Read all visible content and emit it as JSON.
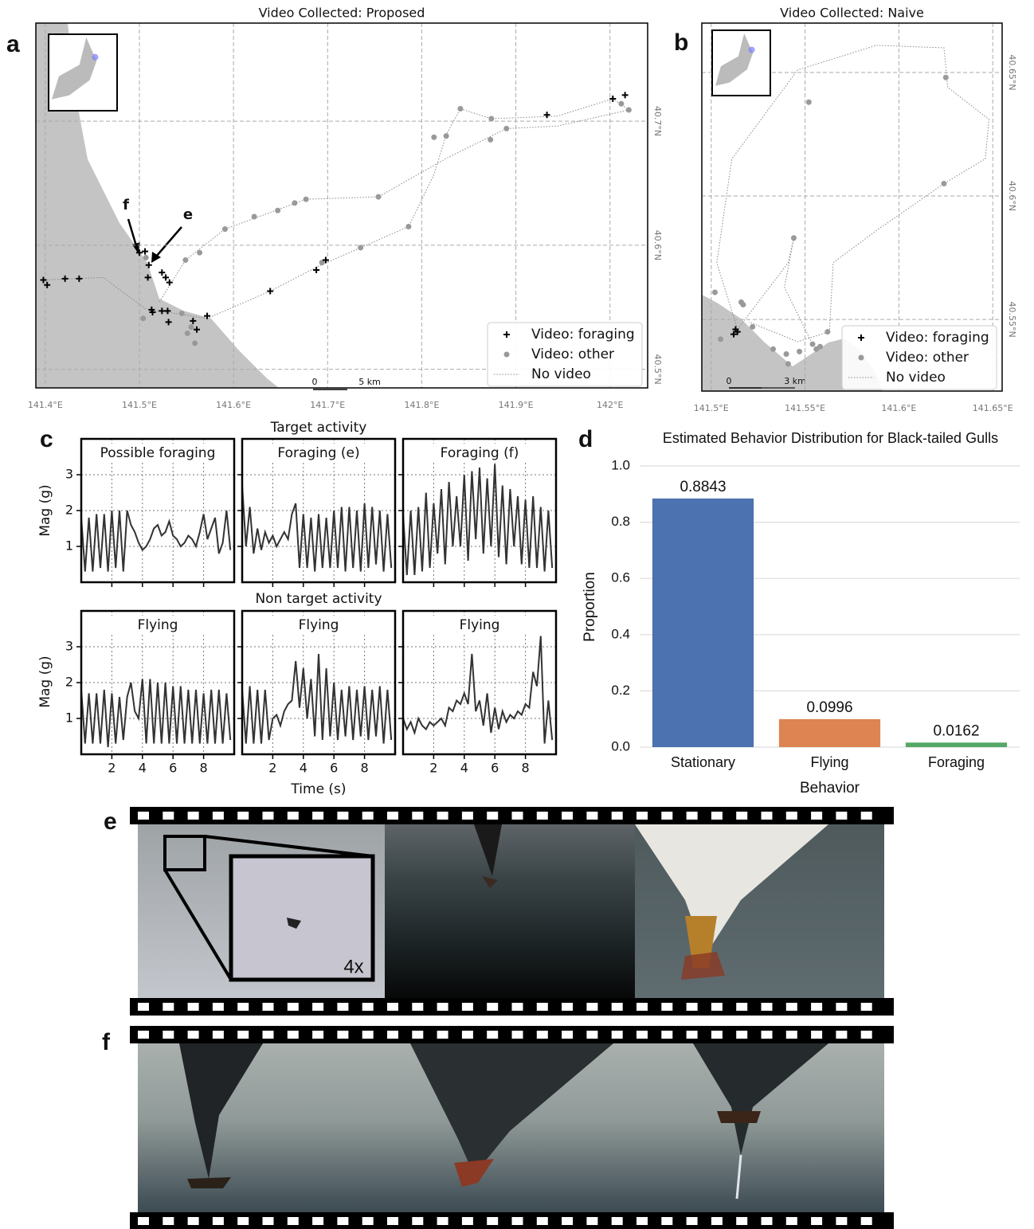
{
  "panel_labels": [
    "a",
    "b",
    "c",
    "d",
    "e",
    "f"
  ],
  "map_a": {
    "title": "Video Collected: Proposed",
    "xlim": [
      141.39,
      142.04
    ],
    "ylim": [
      40.485,
      40.779
    ],
    "xticks": [
      {
        "value": 141.4,
        "label": "141.4°E"
      },
      {
        "value": 141.5,
        "label": "141.5°E"
      },
      {
        "value": 141.6,
        "label": "141.6°E"
      },
      {
        "value": 141.7,
        "label": "141.7°E"
      },
      {
        "value": 141.8,
        "label": "141.8°E"
      },
      {
        "value": 141.9,
        "label": "141.9°E"
      },
      {
        "value": 142.0,
        "label": "142°E"
      }
    ],
    "yticks": [
      {
        "value": 40.5,
        "label": "40.5°N"
      },
      {
        "value": 40.6,
        "label": "40.6°N"
      },
      {
        "value": 40.7,
        "label": "40.7°N"
      }
    ],
    "scale_bar": {
      "start": "0",
      "end": "5 km"
    },
    "arrow_labels": [
      "f",
      "e"
    ],
    "series": [
      {
        "name": "No video",
        "marker": "line",
        "color": "#888888",
        "lon": [
          141.398,
          141.462,
          141.479,
          141.508,
          null,
          141.513,
          141.572,
          141.639,
          141.69,
          141.735,
          141.786,
          141.813,
          141.826,
          141.841,
          141.874,
          141.944,
          142.003,
          142.02,
          141.944,
          141.89,
          141.826,
          141.754,
          141.677,
          141.591,
          141.549,
          141.521
        ],
        "lat": [
          40.572,
          40.574,
          40.564,
          40.548,
          null,
          40.548,
          40.541,
          40.563,
          40.583,
          40.598,
          40.615,
          40.657,
          40.689,
          40.71,
          40.702,
          40.704,
          40.718,
          40.709,
          40.696,
          40.694,
          40.67,
          40.639,
          40.637,
          40.613,
          40.588,
          40.554
        ]
      },
      {
        "name": "Video: other",
        "marker": "circle",
        "color": "#999999",
        "lon": [
          141.507,
          141.549,
          141.564,
          141.591,
          141.622,
          141.647,
          141.665,
          141.677,
          141.754,
          141.786,
          141.735,
          141.694,
          141.813,
          141.826,
          141.841,
          141.874,
          141.873,
          141.89,
          142.012,
          142.02,
          141.504,
          141.545,
          141.555,
          141.559,
          141.551
        ],
        "lat": [
          40.59,
          40.588,
          40.594,
          40.613,
          40.623,
          40.628,
          40.634,
          40.637,
          40.639,
          40.615,
          40.598,
          40.586,
          40.687,
          40.688,
          40.71,
          40.702,
          40.685,
          40.694,
          40.714,
          40.709,
          40.541,
          40.545,
          40.534,
          40.521,
          40.529
        ]
      },
      {
        "name": "Video: foraging",
        "marker": "plus",
        "color": "#000000",
        "lon": [
          141.398,
          141.402,
          141.421,
          141.436,
          141.5,
          141.506,
          141.51,
          141.509,
          141.524,
          141.528,
          141.532,
          141.513,
          141.514,
          141.524,
          141.53,
          141.531,
          141.557,
          141.561,
          141.572,
          141.639,
          141.688,
          141.698,
          141.933,
          142.003,
          142.016
        ],
        "lat": [
          40.572,
          40.568,
          40.573,
          40.573,
          40.594,
          40.595,
          40.584,
          40.574,
          40.578,
          40.574,
          40.57,
          40.548,
          40.546,
          40.547,
          40.547,
          40.538,
          40.539,
          40.532,
          40.543,
          40.563,
          40.58,
          40.588,
          40.705,
          40.718,
          40.721
        ]
      }
    ]
  },
  "map_b": {
    "title": "Video Collected: Naive",
    "xlim": [
      141.495,
      141.655
    ],
    "ylim": [
      40.521,
      40.67
    ],
    "xticks": [
      {
        "value": 141.5,
        "label": "141.5°E"
      },
      {
        "value": 141.55,
        "label": "141.55°E"
      },
      {
        "value": 141.6,
        "label": "141.6°E"
      },
      {
        "value": 141.65,
        "label": "141.65°E"
      }
    ],
    "yticks": [
      {
        "value": 40.55,
        "label": "40.55°N"
      },
      {
        "value": 40.6,
        "label": "40.6°N"
      },
      {
        "value": 40.65,
        "label": "40.65°N"
      }
    ],
    "scale_bar": {
      "start": "0",
      "end": "3 km"
    },
    "series": [
      {
        "name": "No video",
        "marker": "line",
        "color": "#888888",
        "lon": [
          141.514,
          141.503,
          141.511,
          141.546,
          141.588,
          141.624,
          141.626,
          141.648,
          141.646,
          141.624,
          141.588,
          141.565,
          141.563,
          141.546,
          141.52,
          null,
          141.514,
          141.541,
          141.544,
          141.539,
          141.554
        ],
        "lat": [
          40.546,
          40.573,
          40.615,
          40.651,
          40.661,
          40.66,
          40.644,
          40.631,
          40.615,
          40.605,
          40.586,
          40.573,
          40.545,
          40.541,
          40.549,
          null,
          40.546,
          40.573,
          40.583,
          40.563,
          40.54
        ]
      },
      {
        "name": "Video: other",
        "marker": "circle",
        "color": "#999999",
        "lon": [
          141.625,
          141.552,
          141.624,
          141.544,
          141.516,
          141.517,
          141.502,
          141.505,
          141.522,
          141.533,
          141.54,
          141.547,
          141.556,
          141.558,
          141.562,
          141.541,
          141.554
        ],
        "lat": [
          40.648,
          40.638,
          40.605,
          40.583,
          40.557,
          40.556,
          40.561,
          40.542,
          40.547,
          40.538,
          40.536,
          40.537,
          40.538,
          40.539,
          40.545,
          40.532,
          40.54
        ]
      },
      {
        "name": "Video: foraging",
        "marker": "plus",
        "color": "#000000",
        "lon": [
          141.513,
          141.514,
          141.512
        ],
        "lat": [
          40.546,
          40.545,
          40.544
        ]
      }
    ]
  },
  "panel_c": {
    "row_titles": [
      "Target activity",
      "Non target activity"
    ],
    "ylabel": "Mag (g)",
    "xlabel": "Time (s)"
  },
  "chart_data": [
    {
      "type": "line",
      "title": "Possible foraging",
      "xlim": [
        0,
        10
      ],
      "ylim": [
        0,
        4
      ],
      "xticks": [
        2,
        4,
        6,
        8
      ],
      "yticks": [
        1,
        2,
        3
      ],
      "grid": true,
      "x": [
        0,
        0.25,
        0.5,
        0.75,
        1,
        1.25,
        1.5,
        1.75,
        2,
        2.25,
        2.5,
        2.75,
        3,
        3.25,
        3.5,
        3.75,
        4,
        4.25,
        4.5,
        4.75,
        5,
        5.25,
        5.5,
        5.75,
        6,
        6.25,
        6.5,
        6.75,
        7,
        7.25,
        7.5,
        7.75,
        8,
        8.25,
        8.5,
        8.75,
        9,
        9.25,
        9.5,
        9.75
      ],
      "series": [
        {
          "color": "#333333",
          "values": [
            1.8,
            0.3,
            1.8,
            0.3,
            1.9,
            0.4,
            1.9,
            0.3,
            2.0,
            0.4,
            2.0,
            0.3,
            2.0,
            1.6,
            1.4,
            1.1,
            0.9,
            1.0,
            1.2,
            1.5,
            1.6,
            1.3,
            1.4,
            1.7,
            1.3,
            1.2,
            1.0,
            1.1,
            1.3,
            1.2,
            1.0,
            1.4,
            1.9,
            1.2,
            1.5,
            1.8,
            0.8,
            1.1,
            2.0,
            0.9
          ]
        }
      ]
    },
    {
      "type": "line",
      "title": "Foraging (e)",
      "xlim": [
        0,
        10
      ],
      "ylim": [
        0,
        4
      ],
      "xticks": [
        2,
        4,
        6,
        8
      ],
      "yticks": [
        1,
        2,
        3
      ],
      "grid": true,
      "x": [
        0,
        0.25,
        0.5,
        0.75,
        1,
        1.25,
        1.5,
        1.75,
        2,
        2.25,
        2.5,
        2.75,
        3,
        3.25,
        3.5,
        3.75,
        4,
        4.25,
        4.5,
        4.75,
        5,
        5.25,
        5.5,
        5.75,
        6,
        6.25,
        6.5,
        6.75,
        7,
        7.25,
        7.5,
        7.75,
        8,
        8.25,
        8.5,
        8.75,
        9,
        9.25,
        9.5,
        9.75
      ],
      "series": [
        {
          "color": "#333333",
          "values": [
            2.7,
            1.0,
            2.1,
            0.8,
            1.5,
            0.9,
            1.4,
            1.1,
            1.3,
            1.0,
            1.2,
            1.4,
            1.2,
            1.9,
            2.2,
            0.4,
            1.9,
            0.4,
            1.8,
            0.3,
            1.9,
            0.4,
            1.8,
            0.4,
            2.0,
            0.4,
            2.1,
            0.3,
            2.1,
            0.4,
            2.0,
            0.3,
            2.2,
            0.4,
            2.1,
            0.5,
            2.0,
            0.3,
            1.9,
            0.4
          ]
        }
      ]
    },
    {
      "type": "line",
      "title": "Foraging (f)",
      "xlim": [
        0,
        10
      ],
      "ylim": [
        0,
        4
      ],
      "xticks": [
        2,
        4,
        6,
        8
      ],
      "yticks": [
        1,
        2,
        3
      ],
      "grid": true,
      "x": [
        0,
        0.25,
        0.5,
        0.75,
        1,
        1.25,
        1.5,
        1.75,
        2,
        2.25,
        2.5,
        2.75,
        3,
        3.25,
        3.5,
        3.75,
        4,
        4.25,
        4.5,
        4.75,
        5,
        5.25,
        5.5,
        5.75,
        6,
        6.25,
        6.5,
        6.75,
        7,
        7.25,
        7.5,
        7.75,
        8,
        8.25,
        8.5,
        8.75,
        9,
        9.25,
        9.5,
        9.75
      ],
      "series": [
        {
          "color": "#333333",
          "values": [
            1.9,
            0.2,
            2.0,
            0.2,
            2.1,
            0.3,
            2.5,
            0.4,
            2.2,
            0.8,
            2.6,
            0.5,
            2.8,
            1.0,
            2.4,
            1.0,
            3.0,
            0.6,
            3.1,
            1.2,
            3.2,
            0.8,
            2.9,
            1.0,
            3.3,
            0.7,
            2.7,
            0.5,
            2.6,
            1.0,
            2.4,
            0.5,
            2.3,
            0.4,
            2.4,
            0.4,
            2.1,
            0.3,
            2.0,
            0.4
          ]
        }
      ]
    },
    {
      "type": "line",
      "title": "Flying",
      "xlim": [
        0,
        10
      ],
      "ylim": [
        0,
        4
      ],
      "xticks": [
        2,
        4,
        6,
        8
      ],
      "yticks": [
        1,
        2,
        3
      ],
      "grid": true,
      "x": [
        0,
        0.25,
        0.5,
        0.75,
        1,
        1.25,
        1.5,
        1.75,
        2,
        2.25,
        2.5,
        2.75,
        3,
        3.25,
        3.5,
        3.75,
        4,
        4.25,
        4.5,
        4.75,
        5,
        5.25,
        5.5,
        5.75,
        6,
        6.25,
        6.5,
        6.75,
        7,
        7.25,
        7.5,
        7.75,
        8,
        8.25,
        8.5,
        8.75,
        9,
        9.25,
        9.5,
        9.75
      ],
      "series": [
        {
          "color": "#333333",
          "values": [
            1.8,
            0.3,
            1.7,
            0.3,
            1.7,
            0.3,
            1.8,
            0.2,
            1.7,
            0.3,
            1.6,
            0.4,
            1.6,
            2.0,
            1.2,
            1.0,
            2.1,
            0.3,
            2.1,
            0.3,
            2.0,
            0.3,
            2.0,
            0.3,
            1.9,
            0.3,
            1.9,
            0.3,
            1.8,
            0.3,
            1.8,
            0.3,
            1.7,
            0.3,
            1.8,
            0.3,
            1.8,
            0.3,
            1.7,
            0.4
          ]
        }
      ]
    },
    {
      "type": "line",
      "title": "Flying",
      "xlim": [
        0,
        10
      ],
      "ylim": [
        0,
        4
      ],
      "xticks": [
        2,
        4,
        6,
        8
      ],
      "yticks": [
        1,
        2,
        3
      ],
      "grid": true,
      "x": [
        0,
        0.25,
        0.5,
        0.75,
        1,
        1.25,
        1.5,
        1.75,
        2,
        2.25,
        2.5,
        2.75,
        3,
        3.25,
        3.5,
        3.75,
        4,
        4.25,
        4.5,
        4.75,
        5,
        5.25,
        5.5,
        5.75,
        6,
        6.25,
        6.5,
        6.75,
        7,
        7.25,
        7.5,
        7.75,
        8,
        8.25,
        8.5,
        8.75,
        9,
        9.25,
        9.5,
        9.75
      ],
      "series": [
        {
          "color": "#333333",
          "values": [
            1.8,
            0.3,
            1.9,
            0.3,
            1.8,
            0.3,
            1.8,
            0.4,
            1.0,
            1.1,
            0.8,
            1.2,
            1.4,
            1.5,
            2.6,
            1.3,
            2.4,
            1.0,
            2.1,
            0.5,
            2.8,
            0.4,
            2.4,
            0.5,
            2.0,
            0.4,
            1.8,
            0.5,
            1.9,
            0.4,
            1.8,
            0.5,
            1.9,
            0.4,
            1.8,
            0.5,
            1.9,
            0.3,
            1.8,
            0.4
          ]
        }
      ]
    },
    {
      "type": "line",
      "title": "Flying",
      "xlim": [
        0,
        10
      ],
      "ylim": [
        0,
        4
      ],
      "xticks": [
        2,
        4,
        6,
        8
      ],
      "yticks": [
        1,
        2,
        3
      ],
      "grid": true,
      "x": [
        0,
        0.25,
        0.5,
        0.75,
        1,
        1.25,
        1.5,
        1.75,
        2,
        2.25,
        2.5,
        2.75,
        3,
        3.25,
        3.5,
        3.75,
        4,
        4.25,
        4.5,
        4.75,
        5,
        5.25,
        5.5,
        5.75,
        6,
        6.25,
        6.5,
        6.75,
        7,
        7.25,
        7.5,
        7.75,
        8,
        8.25,
        8.5,
        8.75,
        9,
        9.25,
        9.5,
        9.75
      ],
      "series": [
        {
          "color": "#333333",
          "values": [
            1.0,
            0.7,
            0.9,
            0.6,
            1.0,
            0.8,
            0.7,
            0.9,
            0.8,
            0.9,
            1.0,
            0.8,
            1.3,
            1.2,
            1.5,
            1.4,
            1.7,
            1.4,
            2.8,
            1.2,
            1.5,
            0.8,
            1.7,
            0.6,
            1.3,
            0.7,
            1.2,
            0.9,
            1.1,
            1.0,
            1.2,
            1.1,
            1.4,
            1.3,
            2.3,
            1.9,
            3.3,
            0.3,
            1.5,
            0.4
          ]
        }
      ]
    },
    {
      "type": "bar",
      "title": "Estimated Behavior Distribution for Black-tailed Gulls",
      "categories": [
        "Stationary",
        "Flying",
        "Foraging"
      ],
      "values": [
        0.8843,
        0.0996,
        0.0162
      ],
      "colors": [
        "#4c72b0",
        "#dd8452",
        "#55a868"
      ],
      "xlabel": "Behavior",
      "ylabel": "Proportion",
      "ylim": [
        0,
        1
      ],
      "yticks": [
        {
          "value": 0,
          "label": "0.0"
        },
        0.2,
        0.4,
        0.6,
        0.8,
        {
          "value": 1,
          "label": "1.0"
        }
      ],
      "grid": true
    }
  ],
  "panel_e": {
    "zoom_label": "4x"
  }
}
